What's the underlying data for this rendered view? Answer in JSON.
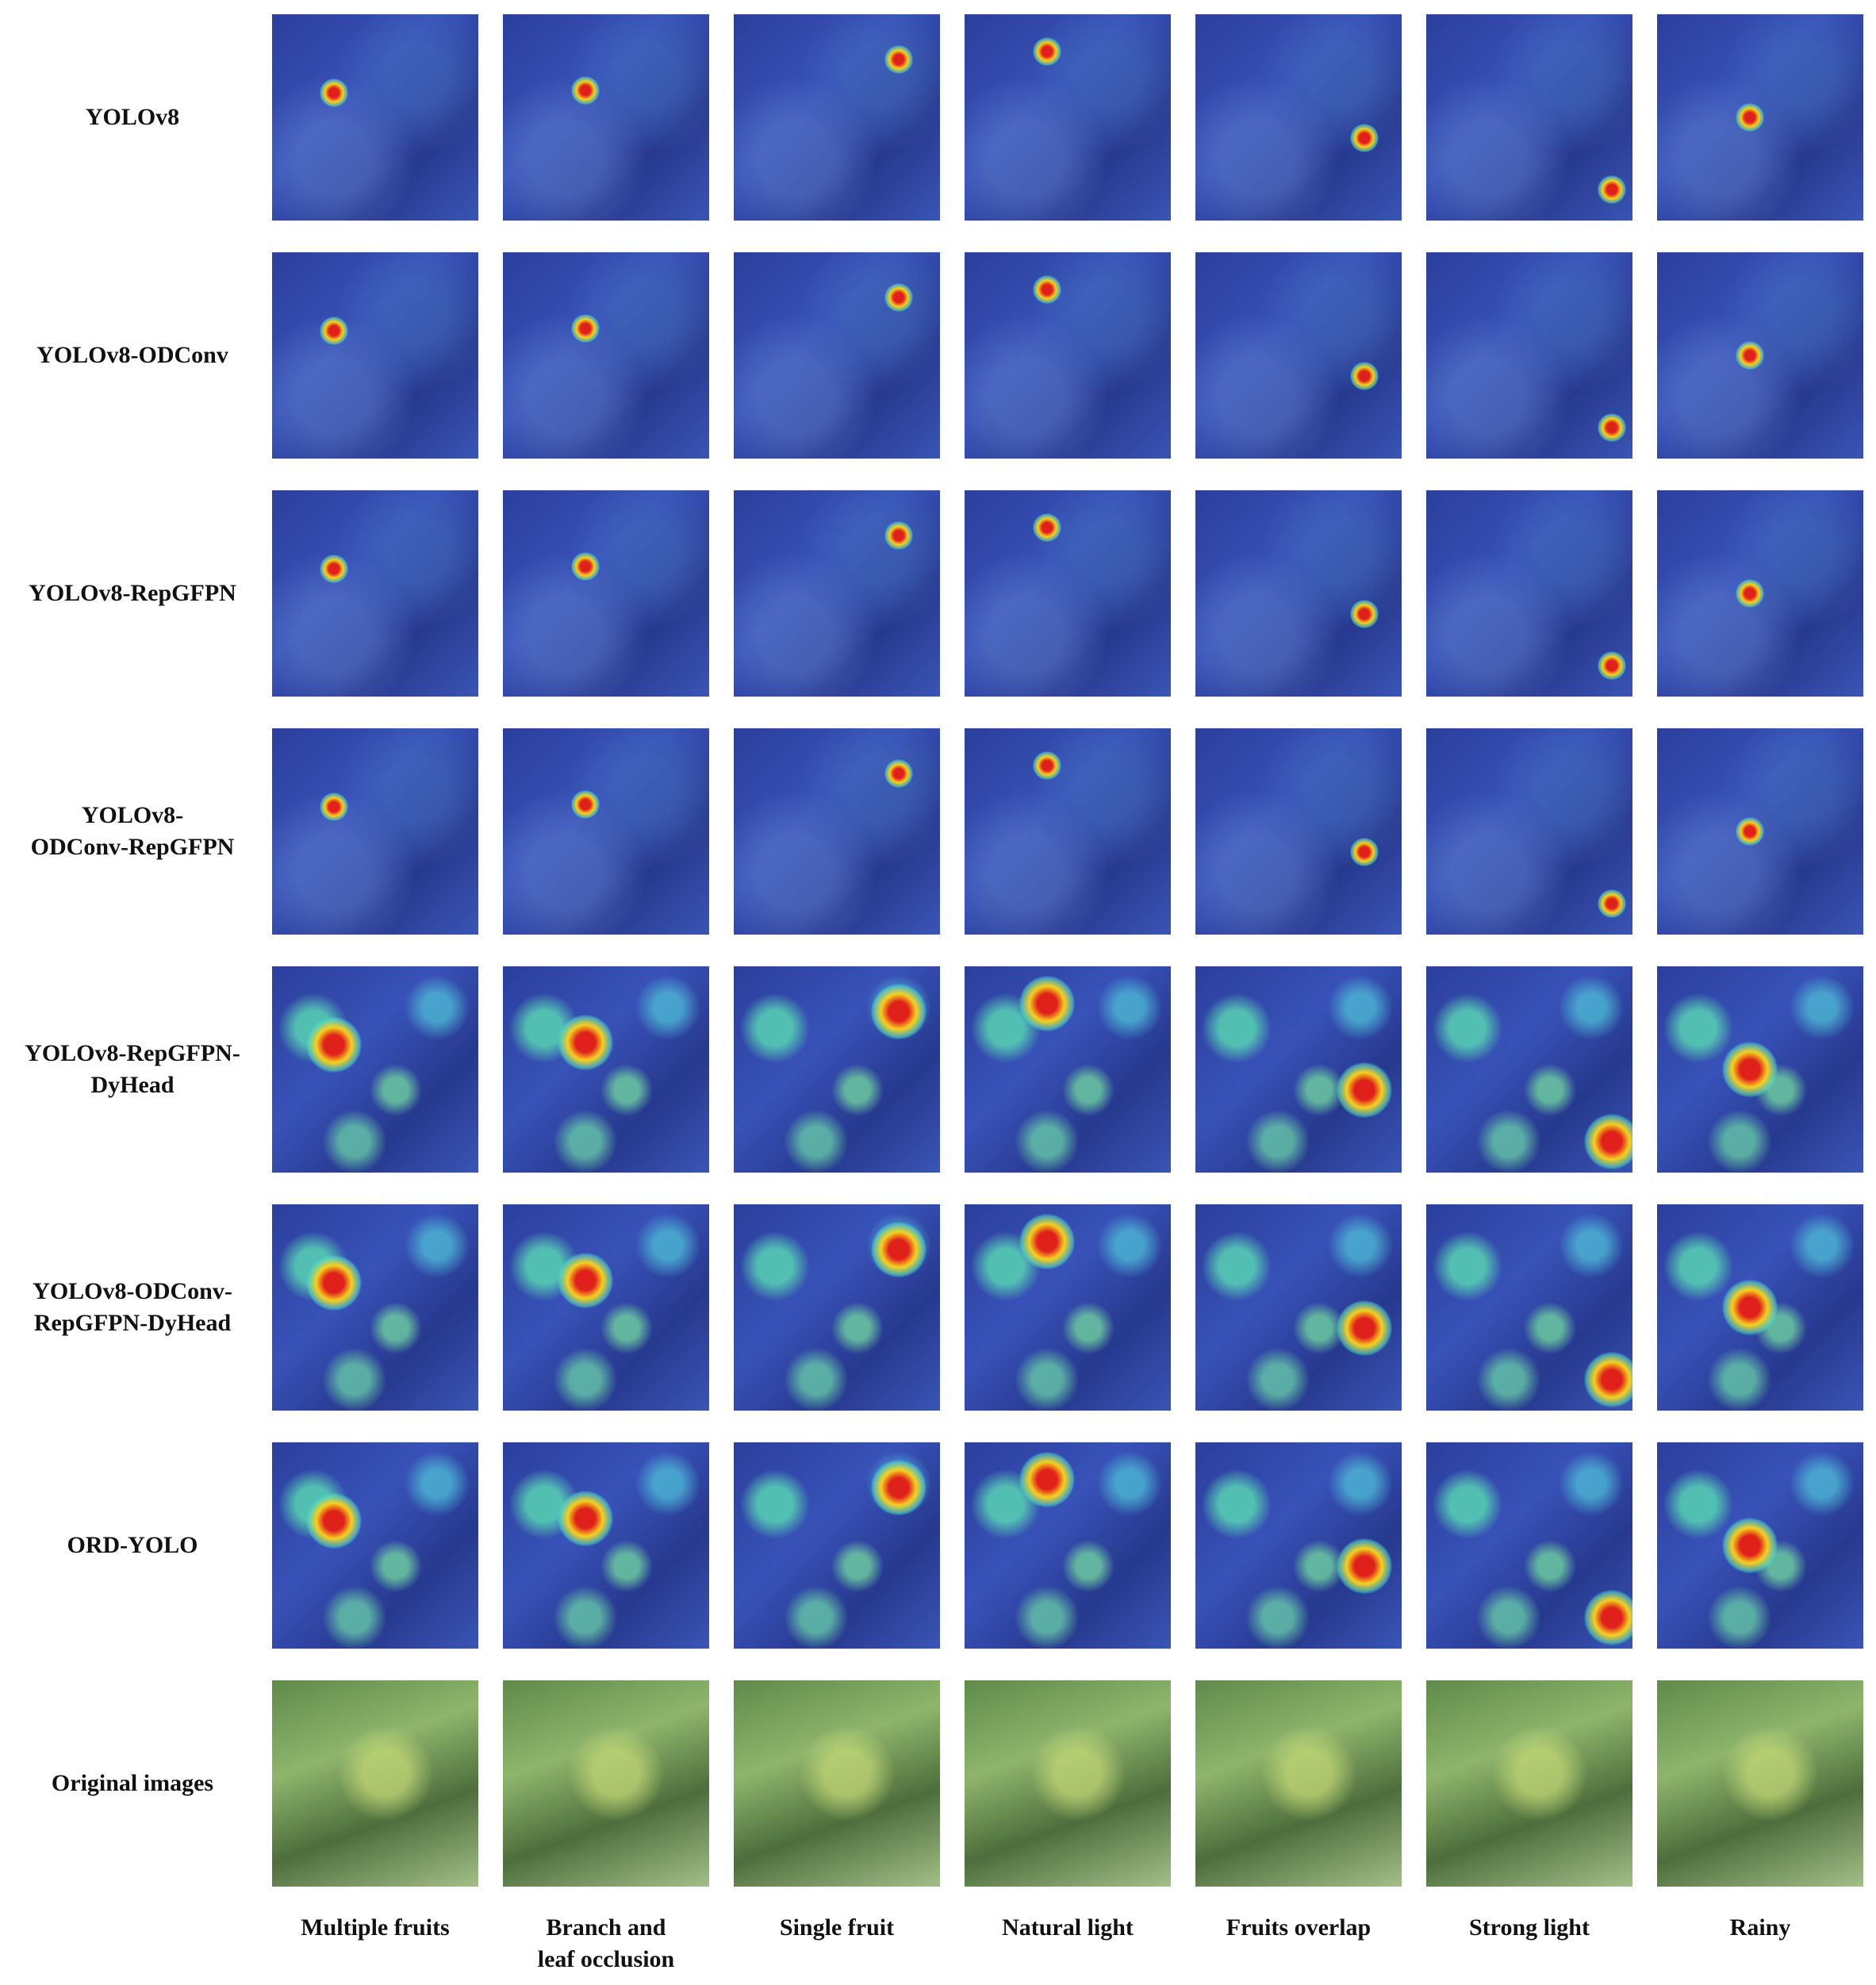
{
  "rows": [
    {
      "label": [
        "YOLOv8"
      ]
    },
    {
      "label": [
        "YOLOv8-ODConv"
      ]
    },
    {
      "label": [
        "YOLOv8-RepGFPN"
      ]
    },
    {
      "label": [
        "YOLOv8-",
        "ODConv-RepGFPN"
      ]
    },
    {
      "label": [
        "YOLOv8-RepGFPN-",
        "DyHead"
      ]
    },
    {
      "label": [
        "YOLOv8-ODConv-",
        "RepGFPN-DyHead"
      ]
    },
    {
      "label": [
        "ORD-YOLO"
      ]
    },
    {
      "label": [
        "Original images"
      ]
    }
  ],
  "columns": [
    {
      "label": [
        "Multiple fruits"
      ]
    },
    {
      "label": [
        "Branch and",
        "leaf occlusion"
      ]
    },
    {
      "label": [
        "Single fruit"
      ]
    },
    {
      "label": [
        "Natural light"
      ]
    },
    {
      "label": [
        "Fruits overlap"
      ]
    },
    {
      "label": [
        "Strong light"
      ]
    },
    {
      "label": [
        "Rainy"
      ]
    }
  ]
}
